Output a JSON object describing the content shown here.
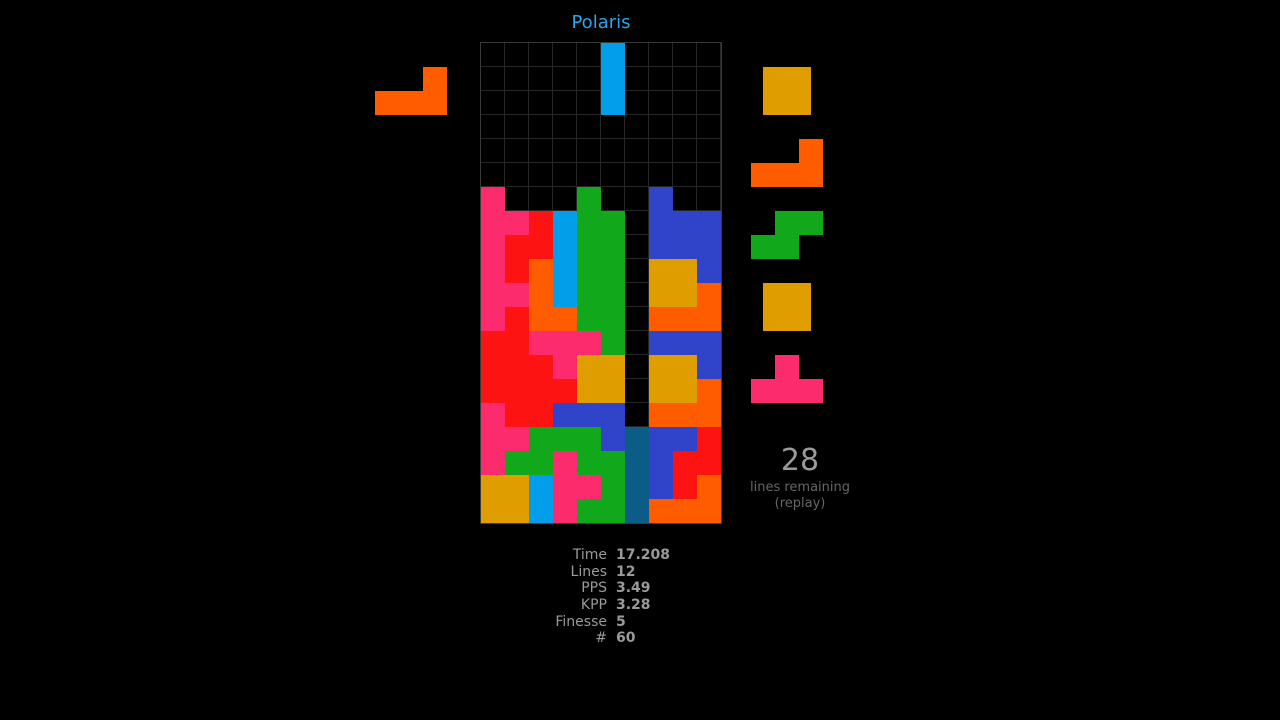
{
  "player": {
    "name": "Polaris"
  },
  "colors": {
    "I": "#039ee9",
    "O": "#e09d00",
    "L": "#ff5c00",
    "J": "#2f44c9",
    "S": "#12a81c",
    "Z": "#fe1313",
    "T": "#fc2b6d",
    "G": "#0b5c86",
    "empty": "#000000",
    "grid": "#262626"
  },
  "board": {
    "cols": 10,
    "rows": [
      "     I    ",
      "     I    ",
      "     I    ",
      "          ",
      "          ",
      "          ",
      "T   S  J  ",
      "TTZISS JJJ",
      "TZZISS JJJ",
      "TZLISS OOJ",
      "TTLISS OOL",
      "TZLLSS LLL",
      "ZZTTTS JJJ",
      "ZZZTOO OOJ",
      "ZZZZOO OOL",
      "TZZJJJ LLL",
      "TTSSSJGJJZ",
      "TSSTSSGJZZ",
      "OOITTSGJZL",
      "OOITSSGLLL"
    ]
  },
  "hold": {
    "piece": "L",
    "icon": "l-piece-icon"
  },
  "queue": [
    "O",
    "L",
    "S",
    "O",
    "T"
  ],
  "remaining": {
    "count": "28",
    "label": "lines remaining",
    "mode": "(replay)"
  },
  "stats": [
    {
      "label": "Time",
      "value": "17.208"
    },
    {
      "label": "Lines",
      "value": "12"
    },
    {
      "label": "PPS",
      "value": "3.49"
    },
    {
      "label": "KPP",
      "value": "3.28"
    },
    {
      "label": "Finesse",
      "value": "5"
    },
    {
      "label": "#",
      "value": "60"
    }
  ]
}
